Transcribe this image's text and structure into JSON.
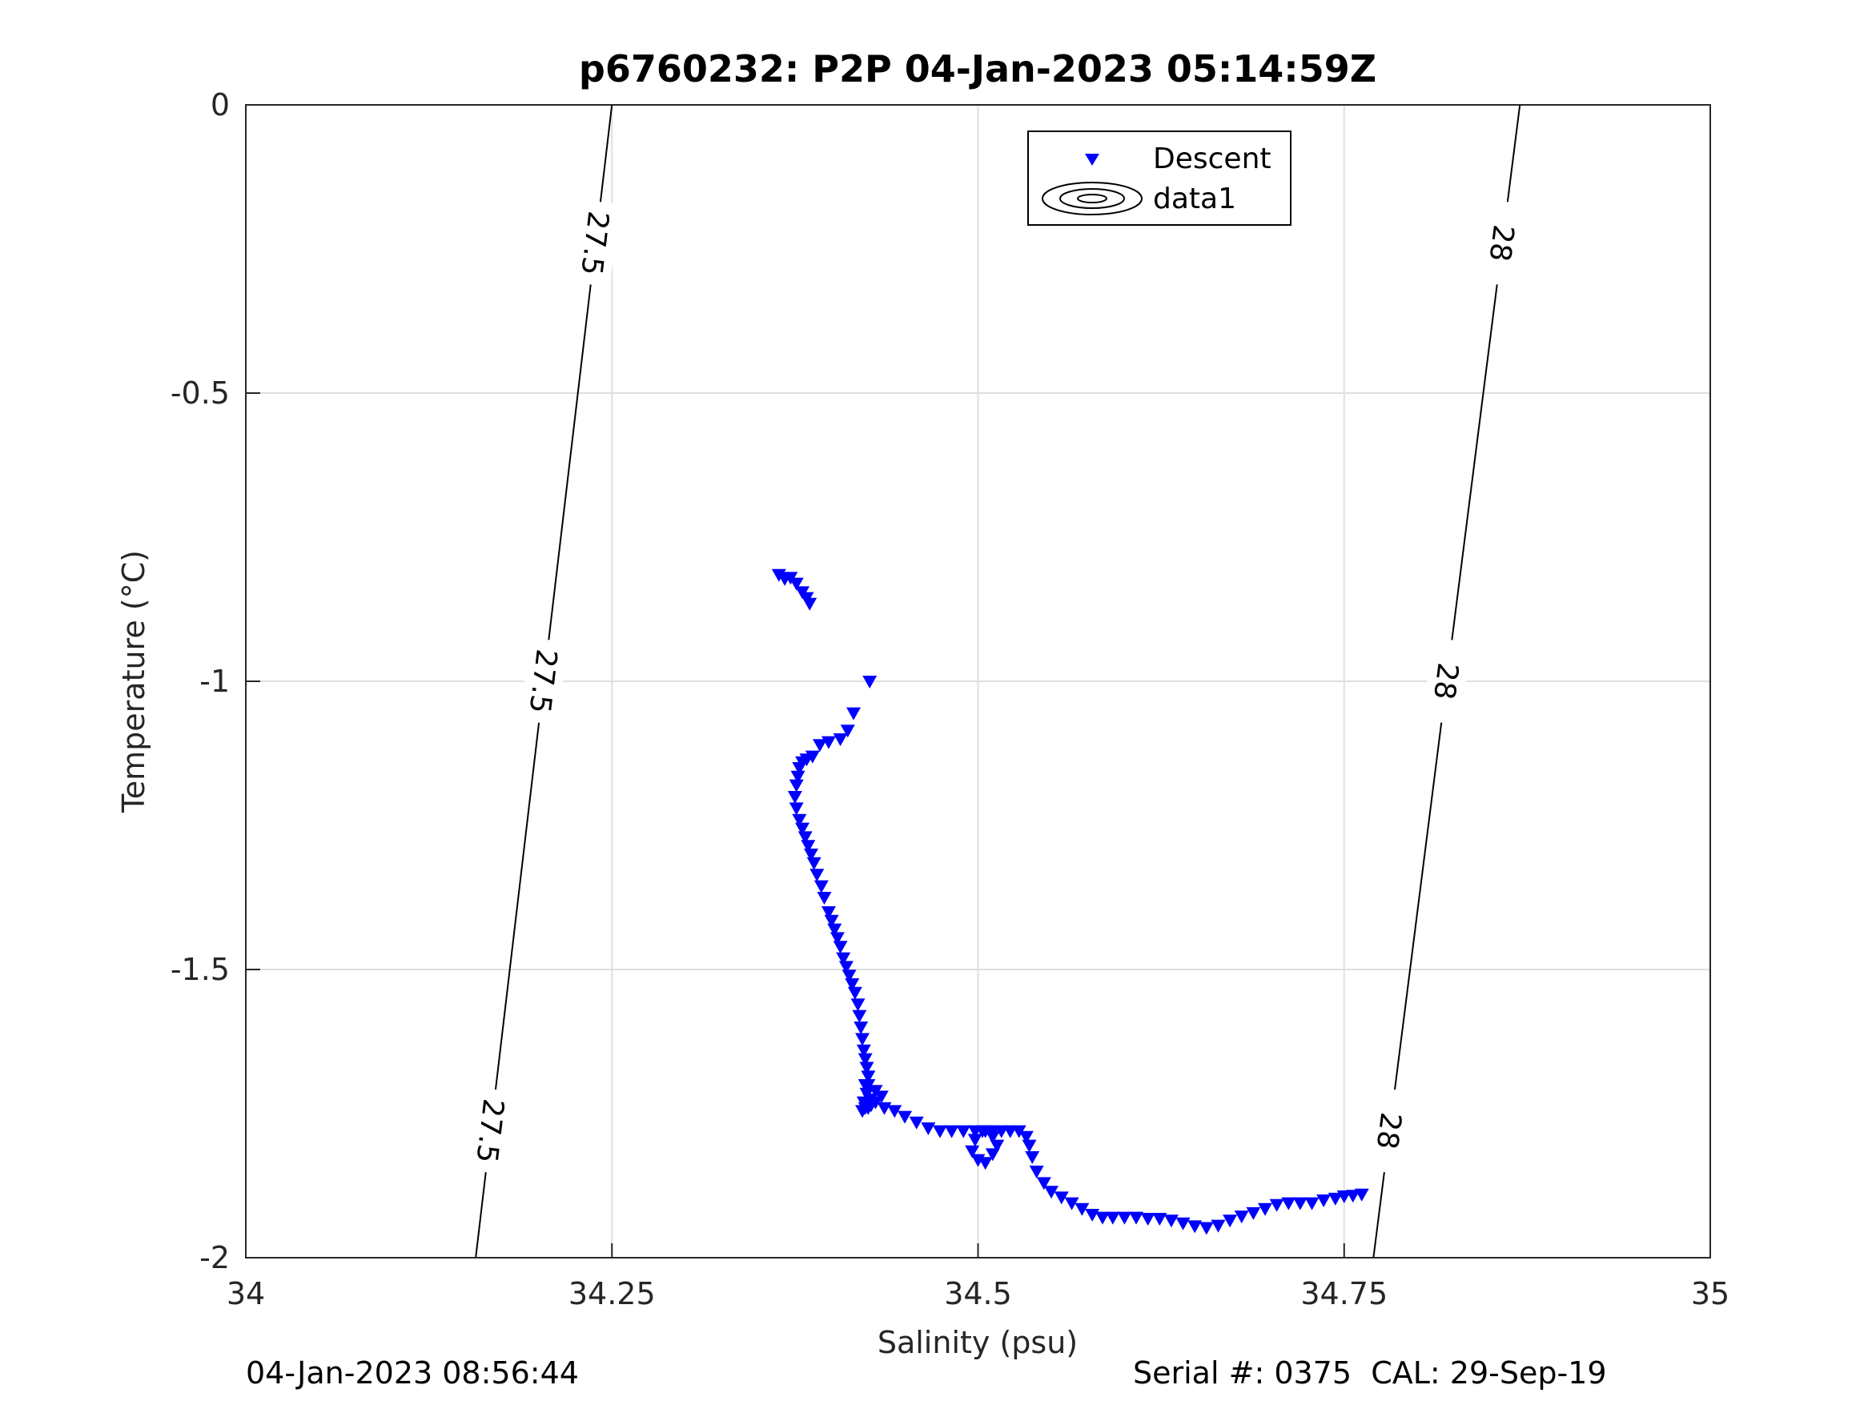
{
  "chart_data": {
    "type": "scatter",
    "title": "p6760232: P2P 04-Jan-2023 05:14:59Z",
    "xlabel": "Salinity (psu)",
    "ylabel": "Temperature (°C)",
    "xlim": [
      34,
      35
    ],
    "ylim": [
      -2,
      0
    ],
    "xticks": [
      34,
      34.25,
      34.5,
      34.75,
      35
    ],
    "xtick_labels": [
      "34",
      "34.25",
      "34.5",
      "34.75",
      "35"
    ],
    "yticks": [
      0,
      -0.5,
      -1,
      -1.5,
      -2
    ],
    "ytick_labels": [
      "0",
      "-0.5",
      "-1",
      "-1.5",
      "-2"
    ],
    "grid": true,
    "legend_position": "top-right",
    "legend": [
      "Descent",
      "data1"
    ],
    "series": [
      {
        "name": "Descent",
        "marker": "triangle-down",
        "color": "#0000ff",
        "x": [
          34.364,
          34.368,
          34.372,
          34.376,
          34.38,
          34.383,
          34.385,
          34.426,
          34.415,
          34.411,
          34.406,
          34.398,
          34.392,
          34.387,
          34.383,
          34.38,
          34.378,
          34.377,
          34.376,
          34.375,
          34.376,
          34.378,
          34.38,
          34.382,
          34.384,
          34.386,
          34.388,
          34.39,
          34.393,
          34.395,
          34.398,
          34.4,
          34.402,
          34.404,
          34.406,
          34.408,
          34.41,
          34.412,
          34.414,
          34.416,
          34.418,
          34.419,
          34.42,
          34.421,
          34.422,
          34.423,
          34.424,
          34.425,
          34.425,
          34.424,
          34.423,
          34.422,
          34.421,
          34.423,
          34.426,
          34.43,
          34.434,
          34.427,
          34.425,
          34.43,
          34.436,
          34.443,
          34.45,
          34.458,
          34.466,
          34.474,
          34.482,
          34.49,
          34.498,
          34.505,
          34.51,
          34.513,
          34.51,
          34.505,
          34.5,
          34.496,
          34.498,
          34.503,
          34.51,
          34.516,
          34.522,
          34.528,
          34.533,
          34.535,
          34.537,
          34.54,
          34.545,
          34.55,
          34.557,
          34.564,
          34.571,
          34.578,
          34.585,
          34.592,
          34.6,
          34.608,
          34.616,
          34.624,
          34.632,
          34.64,
          34.648,
          34.656,
          34.664,
          34.672,
          34.68,
          34.688,
          34.696,
          34.704,
          34.712,
          34.72,
          34.728,
          34.736,
          34.744,
          34.75,
          34.756,
          34.762
        ],
        "y": [
          -0.815,
          -0.822,
          -0.82,
          -0.83,
          -0.845,
          -0.855,
          -0.865,
          -1.0,
          -1.055,
          -1.085,
          -1.1,
          -1.105,
          -1.11,
          -1.13,
          -1.135,
          -1.14,
          -1.15,
          -1.165,
          -1.18,
          -1.2,
          -1.22,
          -1.24,
          -1.255,
          -1.27,
          -1.285,
          -1.3,
          -1.315,
          -1.335,
          -1.355,
          -1.375,
          -1.4,
          -1.415,
          -1.43,
          -1.445,
          -1.46,
          -1.48,
          -1.495,
          -1.51,
          -1.525,
          -1.54,
          -1.56,
          -1.58,
          -1.6,
          -1.62,
          -1.64,
          -1.655,
          -1.67,
          -1.685,
          -1.7,
          -1.715,
          -1.7,
          -1.73,
          -1.745,
          -1.74,
          -1.725,
          -1.71,
          -1.72,
          -1.735,
          -1.74,
          -1.73,
          -1.74,
          -1.745,
          -1.755,
          -1.765,
          -1.775,
          -1.78,
          -1.78,
          -1.78,
          -1.78,
          -1.78,
          -1.79,
          -1.805,
          -1.82,
          -1.835,
          -1.83,
          -1.815,
          -1.795,
          -1.78,
          -1.78,
          -1.78,
          -1.78,
          -1.78,
          -1.79,
          -1.805,
          -1.825,
          -1.85,
          -1.87,
          -1.885,
          -1.895,
          -1.905,
          -1.915,
          -1.925,
          -1.93,
          -1.93,
          -1.93,
          -1.93,
          -1.932,
          -1.932,
          -1.935,
          -1.94,
          -1.945,
          -1.948,
          -1.944,
          -1.935,
          -1.928,
          -1.922,
          -1.915,
          -1.908,
          -1.905,
          -1.905,
          -1.905,
          -1.9,
          -1.897,
          -1.893,
          -1.892,
          -1.89
        ]
      },
      {
        "name": "data1",
        "type": "contour",
        "levels": [
          {
            "label": "27.5",
            "x_at_ymin": 34.157,
            "x_at_ymax": 34.25
          },
          {
            "label": "28",
            "x_at_ymin": 34.77,
            "x_at_ymax": 34.87
          }
        ]
      }
    ]
  },
  "footer": {
    "left": "04-Jan-2023 08:56:44",
    "right": "Serial #: 0375  CAL: 29-Sep-19"
  }
}
